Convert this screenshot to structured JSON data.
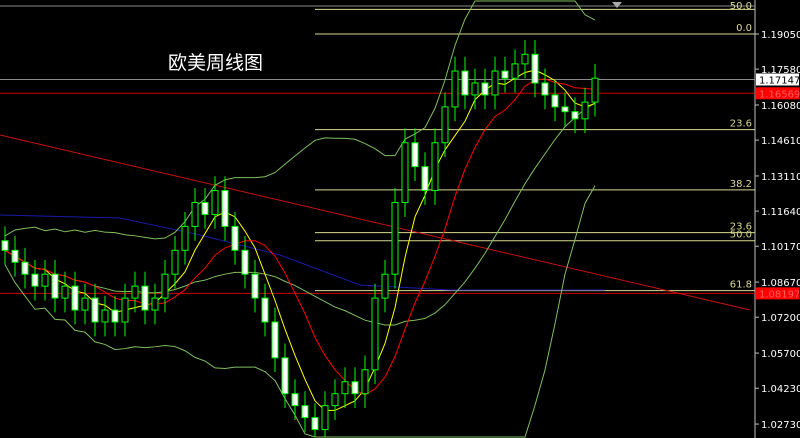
{
  "chart_data": {
    "type": "candlestick",
    "title": "欧美周线图",
    "ylim": [
      1.0225,
      1.201
    ],
    "y_ticks": [
      "1.19050",
      "1.17580",
      "1.16080",
      "1.14610",
      "1.13110",
      "1.11640",
      "1.10170",
      "1.08670",
      "1.07200",
      "1.05700",
      "1.04230",
      "1.02730"
    ],
    "price_labels": [
      {
        "value": "1.17147",
        "bg": "#ffffff",
        "fg": "#000000"
      },
      {
        "value": "1.16569",
        "bg": "#ff0000",
        "fg": "#ff0000"
      },
      {
        "value": "1.08197",
        "bg": "#ff0000",
        "fg": "#ff0000"
      }
    ],
    "fib_levels": [
      {
        "label": "50.0",
        "price": 1.2008
      },
      {
        "label": "0.0",
        "price": 1.1905
      },
      {
        "label": "23.6",
        "price": 1.1505
      },
      {
        "label": "38.2",
        "price": 1.1253
      },
      {
        "label": "23.6",
        "price": 1.1074
      },
      {
        "label": "50.0",
        "price": 1.104
      },
      {
        "label": "61.8",
        "price": 1.0831
      }
    ],
    "closes": [
      1.1,
      1.095,
      1.09,
      1.085,
      1.09,
      1.08,
      1.085,
      1.075,
      1.08,
      1.07,
      1.075,
      1.07,
      1.08,
      1.085,
      1.075,
      1.08,
      1.09,
      1.1,
      1.11,
      1.12,
      1.115,
      1.125,
      1.11,
      1.1,
      1.09,
      1.08,
      1.07,
      1.055,
      1.04,
      1.035,
      1.03,
      1.025,
      1.035,
      1.04,
      1.045,
      1.04,
      1.05,
      1.08,
      1.09,
      1.12,
      1.145,
      1.135,
      1.125,
      1.145,
      1.16,
      1.175,
      1.165,
      1.17,
      1.165,
      1.175,
      1.172,
      1.178,
      1.182,
      1.17,
      1.165,
      1.16,
      1.158,
      1.155,
      1.162,
      1.172
    ],
    "colors": {
      "candle": "#00ff00",
      "ma_fast": "#ffff00",
      "ma_slow": "#ff0000",
      "bands": "#7fbf5f",
      "fib": "#d8d890",
      "trendline": "#cc1111",
      "ma_long": "#1a1aaa",
      "axis": "#c0c0c0"
    }
  }
}
